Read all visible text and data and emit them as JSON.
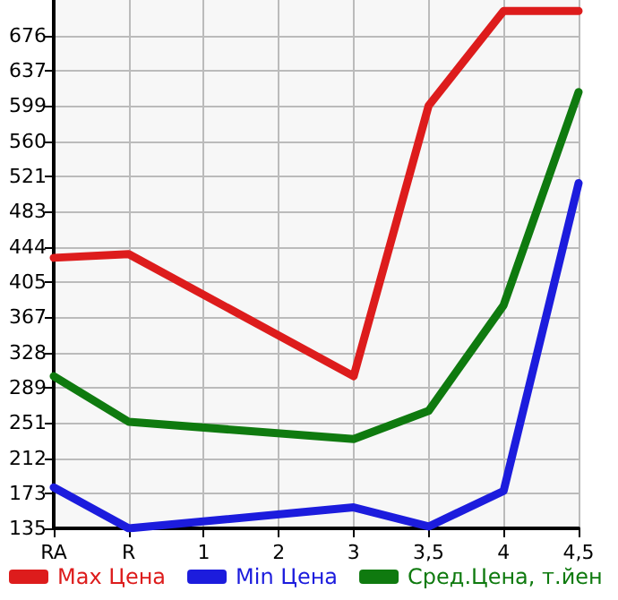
{
  "chart_data": {
    "type": "line",
    "categories": [
      "RA",
      "R",
      "1",
      "2",
      "3",
      "3,5",
      "4",
      "4,5"
    ],
    "series": [
      {
        "name": "Max Цена",
        "color": "#dd1c1c",
        "values": [
          432,
          436,
          null,
          null,
          302,
          599,
          703,
          703
        ]
      },
      {
        "name": "Min Цена",
        "color": "#1c1cdd",
        "values": [
          180,
          135,
          null,
          null,
          158,
          137,
          176,
          514
        ]
      },
      {
        "name": "Сред.Цена, т.йен",
        "color": "#0f7a0f",
        "values": [
          302,
          252,
          null,
          null,
          233,
          264,
          380,
          614
        ]
      }
    ],
    "ylim": [
      135,
      715
    ],
    "yticks": [
      135,
      173,
      212,
      251,
      289,
      328,
      367,
      405,
      444,
      483,
      521,
      560,
      599,
      637,
      676
    ],
    "grid": true,
    "legend": "bottom",
    "marker": "none",
    "line_style": "solid"
  }
}
